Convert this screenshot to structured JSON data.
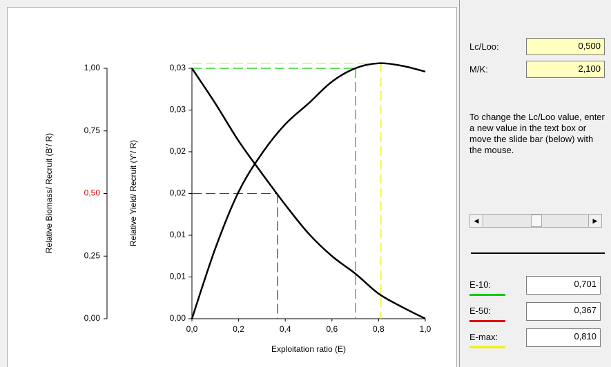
{
  "chart_data": {
    "type": "line",
    "xlabel": "Exploitation ratio (E)",
    "ylabel": "Relative Biomass/ Recruit (B'/ R)",
    "y2label": "Relative Yield/ Recruit (Y'/ R)",
    "x": [
      0,
      0.1,
      0.2,
      0.3,
      0.4,
      0.5,
      0.6,
      0.7,
      0.8,
      0.9,
      1.0
    ],
    "xlim": [
      0,
      1
    ],
    "xticks": [
      {
        "value": 0,
        "label": "0,0"
      },
      {
        "value": 0.2,
        "label": "0,2"
      },
      {
        "value": 0.4,
        "label": "0,4"
      },
      {
        "value": 0.6,
        "label": "0,6"
      },
      {
        "value": 0.8,
        "label": "0,8"
      },
      {
        "value": 1,
        "label": "1,0"
      }
    ],
    "ylim": [
      0,
      1
    ],
    "yticks": [
      {
        "value": 0,
        "label": "0,00"
      },
      {
        "value": 0.25,
        "label": "0,25"
      },
      {
        "value": 0.5,
        "label": "0,50",
        "color": "#e00000"
      },
      {
        "value": 0.75,
        "label": "0,75"
      },
      {
        "value": 1,
        "label": "1,00"
      }
    ],
    "y2lim": [
      0,
      0.03
    ],
    "y2ticks": [
      {
        "value": 0,
        "label": "0,00"
      },
      {
        "value": 0.005,
        "label": "0,01"
      },
      {
        "value": 0.01,
        "label": "0,01"
      },
      {
        "value": 0.015,
        "label": "0,02"
      },
      {
        "value": 0.02,
        "label": "0,02"
      },
      {
        "value": 0.025,
        "label": "0,03"
      },
      {
        "value": 0.03,
        "label": "0,03"
      }
    ],
    "series": [
      {
        "color": "#000000",
        "axis": "y",
        "values": [
          1.0,
          0.86,
          0.71,
          0.58,
          0.455,
          0.34,
          0.25,
          0.18,
          0.1,
          0.047,
          0
        ]
      },
      {
        "color": "#000000",
        "axis": "y2",
        "values": [
          0,
          0.0084,
          0.0152,
          0.0198,
          0.0233,
          0.0258,
          0.0284,
          0.03,
          0.0306,
          0.0303,
          0.0296
        ]
      }
    ],
    "reference_lines": [
      {
        "x": 0.701,
        "y": 0.03,
        "axis": "y2",
        "color": "#00d000"
      },
      {
        "x": 0.367,
        "y": 0.5,
        "axis": "y",
        "color": "#e00000"
      },
      {
        "x": 0.81,
        "y": 0.0306,
        "axis": "y2",
        "color": "#f0f000"
      }
    ]
  },
  "panel": {
    "lc_loo": {
      "label": "Lc/Loo:",
      "value": "0,500"
    },
    "m_k": {
      "label": "M/K:",
      "value": "2,100"
    },
    "help": "To change the Lc/Loo value, enter a new value in the text box or move the slide bar (below) with the mouse.",
    "results": [
      {
        "label": "E-10:",
        "value": "0,701",
        "color": "#00d000"
      },
      {
        "label": "E-50:",
        "value": "0,367",
        "color": "#e00000"
      },
      {
        "label": "E-max:",
        "value": "0,810",
        "color": "#f0f000"
      }
    ]
  }
}
